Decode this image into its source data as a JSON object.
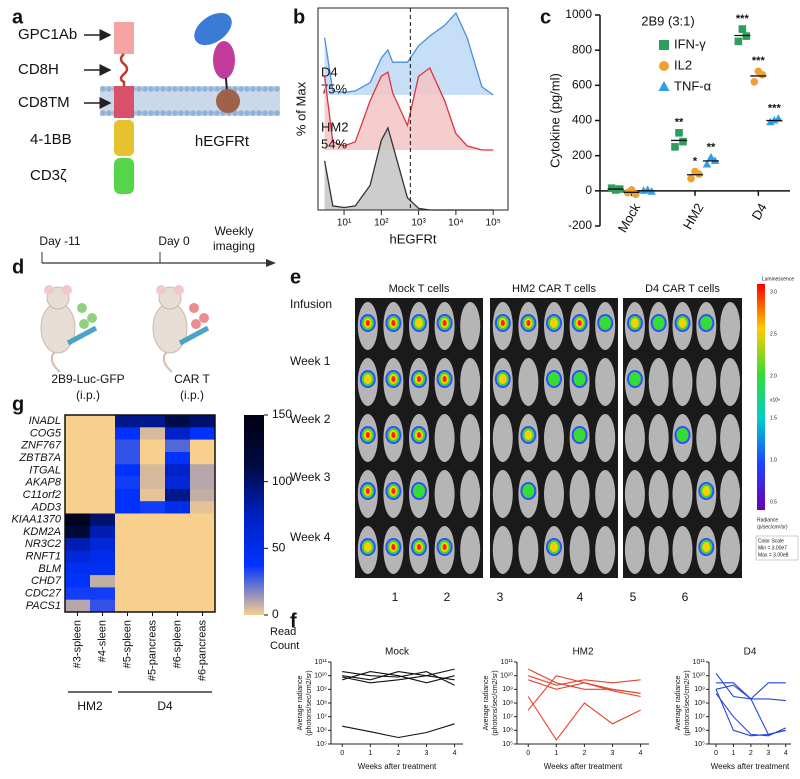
{
  "panel_labels": [
    "a",
    "b",
    "c",
    "d",
    "e",
    "f",
    "g"
  ],
  "construct_a": {
    "labels": [
      "GPC1Ab",
      "CD8H",
      "CD8TM",
      "4-1BB",
      "CD3ζ"
    ],
    "tag": "hEGFRt"
  },
  "timeline_d": {
    "events": [
      "Day -11",
      "Day 0"
    ],
    "end": [
      "Weekly",
      "imaging"
    ],
    "injections": [
      {
        "name": "2B9-Luc-GFP",
        "route": "(i.p.)"
      },
      {
        "name": "CAR T",
        "route": "(i.p.)"
      }
    ]
  },
  "imaging_e": {
    "groups": [
      "Mock T cells",
      "HM2 CAR T cells",
      "D4 CAR T cells"
    ],
    "timepoints": [
      "Infusion",
      "Week 1",
      "Week 2",
      "Week 3",
      "Week 4"
    ],
    "cage_numbers": [
      1,
      2,
      3,
      4,
      5,
      6
    ],
    "scale": {
      "title": "Luminescence",
      "ticks": [
        "3.0",
        "2.5",
        "2.0",
        "1.5",
        "1.0",
        "0.5"
      ],
      "multiplier": "x10⁸",
      "unit_title": "Radiance",
      "unit": "(p/sec/cm²/sr)",
      "legend": [
        "Color Scale",
        "Min = 3.00e7",
        "Max = 3.00e8"
      ]
    }
  },
  "chart_data": [
    {
      "type": "density",
      "x_label": "hEGFRt",
      "y_label": "% of Max",
      "x_scale": "log",
      "xlim": [
        2,
        250000
      ],
      "xticks": [
        {
          "value": 10,
          "label": "10¹"
        },
        {
          "value": 100,
          "label": "10²"
        },
        {
          "value": 1000,
          "label": "10³"
        },
        {
          "value": 10000,
          "label": "10⁴"
        },
        {
          "value": 100000,
          "label": "10⁵"
        }
      ],
      "ylim": [
        0,
        100
      ],
      "gate": 600,
      "x": [
        3,
        5,
        10,
        20,
        50,
        100,
        150,
        200,
        500,
        1000,
        2000,
        5000,
        10000,
        20000,
        50000,
        100000
      ],
      "series": [
        {
          "name": "D4",
          "annotation": "75%",
          "color": "#4a8fdc",
          "fill": "#bcd8f4",
          "values": [
            70,
            5,
            3,
            5,
            15,
            45,
            55,
            40,
            40,
            60,
            72,
            85,
            100,
            70,
            10,
            0
          ]
        },
        {
          "name": "HM2",
          "annotation": "54%",
          "color": "#d9363e",
          "fill": "#f4c4c4",
          "values": [
            90,
            10,
            5,
            10,
            60,
            90,
            95,
            70,
            30,
            90,
            100,
            60,
            20,
            5,
            0,
            0
          ]
        },
        {
          "color": "#333333",
          "fill": "#c4c4c4",
          "values": [
            60,
            5,
            3,
            5,
            30,
            85,
            100,
            80,
            15,
            2,
            0,
            0,
            0,
            0,
            0,
            0
          ]
        }
      ]
    },
    {
      "type": "dot",
      "title": "2B9 (3:1)",
      "y_label": "Cytokine (pg/ml)",
      "legend": "top",
      "categories": [
        "Mock",
        "HM2",
        "D4"
      ],
      "ylim": [
        -200,
        1000
      ],
      "yticks": [
        -200,
        0,
        200,
        400,
        600,
        800,
        1000
      ],
      "series": [
        {
          "name": "IFN-γ",
          "color": "#2f9e5c",
          "marker": "square",
          "values": [
            [
              15,
              5,
              10
            ],
            [
              250,
              330,
              280
            ],
            [
              850,
              920,
              880
            ]
          ],
          "significance": [
            null,
            "**",
            "***"
          ]
        },
        {
          "name": "IL2",
          "color": "#f0a030",
          "marker": "circle",
          "values": [
            [
              -10,
              5,
              -20
            ],
            [
              70,
              110,
              95
            ],
            [
              620,
              680,
              660
            ]
          ],
          "significance": [
            null,
            "*",
            "***"
          ]
        },
        {
          "name": "TNF-α",
          "color": "#2e9ee8",
          "marker": "triangle",
          "values": [
            [
              0,
              5,
              -5
            ],
            [
              150,
              190,
              170
            ],
            [
              390,
              400,
              410
            ]
          ],
          "significance": [
            null,
            "**",
            "***"
          ]
        }
      ]
    },
    {
      "type": "line",
      "title": "Mock",
      "x_label": "Weeks after treatment",
      "y_label": [
        "Average radiance",
        "(photons/sec/cm2/sr)"
      ],
      "color": "#111111",
      "x": [
        0,
        1,
        2,
        3,
        4
      ],
      "xlim": [
        -0.4,
        4.3
      ],
      "xticks": [
        0,
        1,
        2,
        3,
        4
      ],
      "y_scale": "log",
      "ylim": [
        100000,
        100000000000
      ],
      "yticks": [
        {
          "value": 100000,
          "label": "10⁵"
        },
        {
          "value": 1000000,
          "label": "10⁶"
        },
        {
          "value": 10000000,
          "label": "10⁷"
        },
        {
          "value": 100000000,
          "label": "10⁸"
        },
        {
          "value": 1000000000,
          "label": "10⁹"
        },
        {
          "value": 10000000000,
          "label": "10¹⁰"
        },
        {
          "value": 100000000000,
          "label": "10¹¹"
        }
      ],
      "series": [
        {
          "values": [
            10000000000,
            5000000000,
            20000000000,
            10000000000,
            30000000000
          ]
        },
        {
          "values": [
            20000000000,
            10000000000,
            8000000000,
            20000000000,
            2000000000
          ]
        },
        {
          "values": [
            5000000000,
            20000000000,
            10000000000,
            3000000000,
            10000000000
          ]
        },
        {
          "values": [
            8000000000,
            3000000000,
            5000000000,
            10000000000,
            5000000000
          ]
        },
        {
          "values": [
            2000000,
            800000,
            300000,
            700000,
            3000000
          ]
        }
      ]
    },
    {
      "type": "line",
      "title": "HM2",
      "x_label": "Weeks after treatment",
      "y_label": [
        "Average radiance",
        "(photons/sec/cm2/sr)"
      ],
      "color": "#e8432c",
      "x": [
        0,
        1,
        2,
        3,
        4
      ],
      "xlim": [
        -0.4,
        4.3
      ],
      "xticks": [
        0,
        1,
        2,
        3,
        4
      ],
      "y_scale": "log",
      "ylim": [
        100000,
        100000000000
      ],
      "yticks": [
        {
          "value": 100000,
          "label": "10⁵"
        },
        {
          "value": 1000000,
          "label": "10⁶"
        },
        {
          "value": 10000000,
          "label": "10⁷"
        },
        {
          "value": 100000000,
          "label": "10⁸"
        },
        {
          "value": 1000000000,
          "label": "10⁹"
        },
        {
          "value": 10000000000,
          "label": "10¹⁰"
        },
        {
          "value": 100000000000,
          "label": "10¹¹"
        }
      ],
      "series": [
        {
          "values": [
            30000000000,
            3000000000,
            1000000000,
            1000000000,
            500000000
          ]
        },
        {
          "values": [
            10000000000,
            2000000000,
            5000000000,
            3000000000,
            5000000000
          ]
        },
        {
          "values": [
            5000000000,
            1000000000,
            3000000000,
            800000000,
            300000000
          ]
        },
        {
          "values": [
            30000000,
            10000000000,
            3000000000,
            1000000000,
            500000000
          ]
        },
        {
          "values": [
            300000000,
            200000,
            100000000,
            3000000,
            30000000
          ]
        }
      ]
    },
    {
      "type": "line",
      "title": "D4",
      "x_label": "Weeks after treatment",
      "y_label": [
        "Average radiance",
        "(photons/sec/cm2/sr)"
      ],
      "color": "#2446d8",
      "x": [
        0,
        1,
        2,
        3,
        4
      ],
      "xlim": [
        -0.4,
        4.3
      ],
      "xticks": [
        0,
        1,
        2,
        3,
        4
      ],
      "y_scale": "log",
      "ylim": [
        100000,
        100000000000
      ],
      "yticks": [
        {
          "value": 100000,
          "label": "10⁵"
        },
        {
          "value": 1000000,
          "label": "10⁶"
        },
        {
          "value": 10000000,
          "label": "10⁷"
        },
        {
          "value": 100000000,
          "label": "10⁸"
        },
        {
          "value": 1000000000,
          "label": "10⁹"
        },
        {
          "value": 10000000000,
          "label": "10¹⁰"
        },
        {
          "value": 100000000000,
          "label": "10¹¹"
        }
      ],
      "series": [
        {
          "values": [
            15000000000,
            300000000,
            200000000,
            3000000000,
            3000000000
          ]
        },
        {
          "values": [
            3000000000,
            3000000000,
            200000000,
            200000000,
            150000000
          ]
        },
        {
          "values": [
            1000000000,
            2000000000,
            200000000,
            500000,
            1000000
          ]
        },
        {
          "values": [
            500000000,
            10000000,
            500000,
            400000,
            1500000
          ]
        },
        {
          "values": [
            1000000000,
            1000000,
            400000,
            500000,
            1000000
          ]
        }
      ]
    },
    {
      "type": "heatmap",
      "rows": [
        "INADL",
        "COG5",
        "ZNF767",
        "ZBTB7A",
        "ITGAL",
        "AKAP8",
        "C11orf2",
        "ADD3",
        "KIAA1370",
        "KDM2A",
        "NR3C2",
        "RNFT1",
        "BLM",
        "CHD7",
        "CDC27",
        "PACS1"
      ],
      "columns": [
        "#3-spleen",
        "#4-sleen",
        "#5-spleen",
        "#5-pancreas",
        "#6-spleen",
        "#6-pancreas"
      ],
      "groups": [
        "HM2",
        "D4"
      ],
      "values": [
        [
          0,
          0,
          90,
          90,
          110,
          100
        ],
        [
          0,
          0,
          40,
          5,
          70,
          40
        ],
        [
          0,
          0,
          30,
          0,
          25,
          0
        ],
        [
          0,
          0,
          30,
          0,
          40,
          0
        ],
        [
          0,
          0,
          40,
          5,
          70,
          10
        ],
        [
          0,
          0,
          35,
          5,
          60,
          10
        ],
        [
          0,
          0,
          40,
          3,
          90,
          8
        ],
        [
          0,
          0,
          40,
          35,
          50,
          3
        ],
        [
          140,
          100,
          0,
          0,
          0,
          0
        ],
        [
          120,
          80,
          0,
          0,
          0,
          0
        ],
        [
          80,
          60,
          0,
          0,
          0,
          0
        ],
        [
          60,
          50,
          0,
          0,
          0,
          0
        ],
        [
          45,
          45,
          0,
          0,
          0,
          0
        ],
        [
          40,
          8,
          0,
          0,
          0,
          0
        ],
        [
          35,
          35,
          0,
          0,
          0,
          0
        ],
        [
          10,
          30,
          0,
          0,
          0,
          0
        ]
      ],
      "zlim": [
        0,
        150
      ],
      "zticks": [
        0,
        50,
        100,
        150
      ],
      "colorbar_label": [
        "Read",
        "Count"
      ],
      "colormap": [
        "#f8cf8d",
        "#0033ff",
        "#0020c0",
        "#000a40",
        "#000010"
      ]
    }
  ]
}
